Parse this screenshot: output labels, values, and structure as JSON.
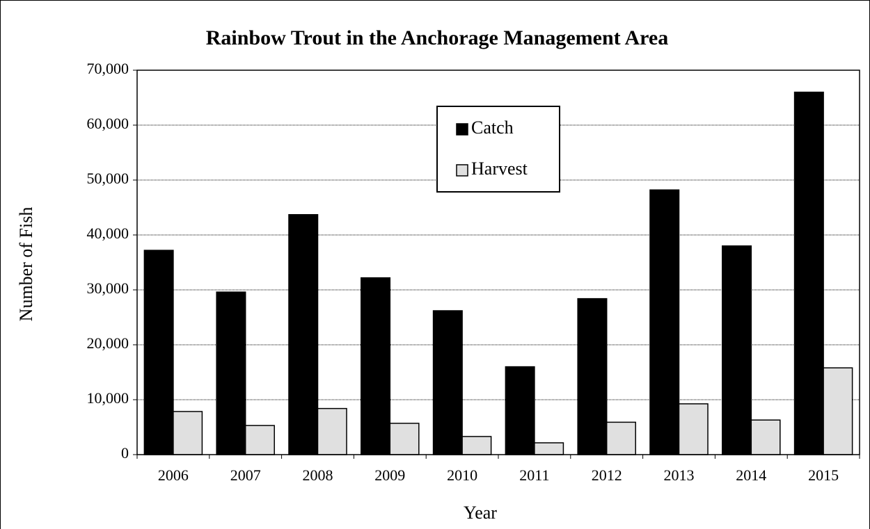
{
  "chart_data": {
    "type": "bar",
    "title": "Rainbow Trout in the Anchorage Management Area",
    "xlabel": "Year",
    "ylabel": "Number of Fish",
    "categories": [
      "2006",
      "2007",
      "2008",
      "2009",
      "2010",
      "2011",
      "2012",
      "2013",
      "2014",
      "2015"
    ],
    "series": [
      {
        "name": "Catch",
        "color": "#000000",
        "values": [
          37200,
          29600,
          43700,
          32200,
          26200,
          16000,
          28400,
          48200,
          38000,
          66000
        ]
      },
      {
        "name": "Harvest",
        "color": "#e0e0e0",
        "values": [
          7850,
          5300,
          8400,
          5700,
          3300,
          2150,
          5900,
          9250,
          6300,
          15800
        ]
      }
    ],
    "ylim": [
      0,
      70000
    ],
    "yticks": [
      0,
      {
        "value": 10000,
        "label": "10,000"
      },
      {
        "value": 20000,
        "label": "20,000"
      },
      {
        "value": 30000,
        "label": "30,000"
      },
      {
        "value": 40000,
        "label": "40,000"
      },
      {
        "value": 50000,
        "label": "50,000"
      },
      {
        "value": 60000,
        "label": "60,000"
      },
      {
        "value": 70000,
        "label": "70,000"
      }
    ],
    "grid": true,
    "legend": "upper center"
  }
}
